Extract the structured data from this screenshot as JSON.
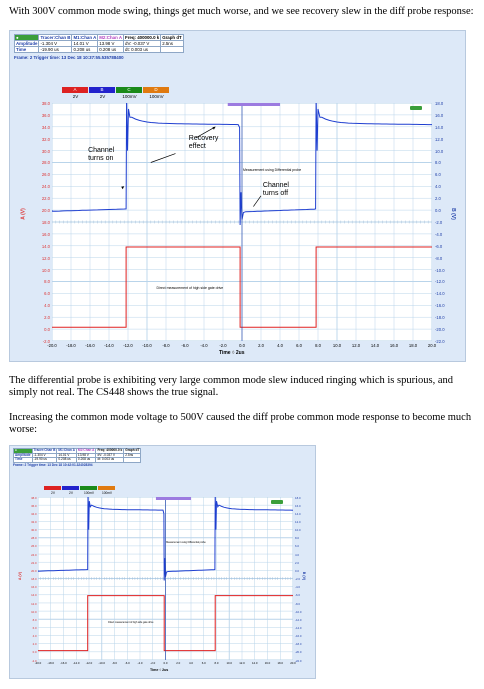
{
  "paragraphs": [
    "With 300V common mode swing, things get much worse, and we see recovery slew in the diff probe response:",
    "The differential probe is exhibiting very large common mode slew induced ringing which is spurious, and simply not real. The CS448 shows the true signal.",
    "Increasing the common mode voltage to 500V caused the diff probe common mode response to become much worse:"
  ],
  "figure1": {
    "table": {
      "headers": [
        "Tracer:Chan B",
        "M1:Chan A",
        "M2:Chan A",
        "Freq: 400000.0 k",
        "Graph dT"
      ],
      "rows": [
        [
          "Amplitude",
          "-1.304 V",
          "14.01 V",
          "13.98 V",
          "dV: -0.037 V",
          "2.5ns"
        ],
        [
          "Time",
          "-19.90 us",
          "0.208 us",
          "0.208 us",
          "dt: 0.003 us",
          ""
        ]
      ],
      "frame_line": "Frame: 2   Trigger time: 13 Dec 18 10:37:55.535788400"
    },
    "channel_chips": [
      "A",
      "B",
      "C",
      "D"
    ],
    "channel_scales": [
      "2V",
      "2V",
      "100mV",
      "100mV"
    ],
    "y_left_label": "A (V)",
    "y_right_label": "B (V)",
    "x_label": "Time",
    "x_unit": "2us",
    "y_left_ticks": [
      "38.0",
      "36.0",
      "34.0",
      "32.0",
      "30.0",
      "28.0",
      "26.0",
      "24.0",
      "22.0",
      "20.0",
      "18.0",
      "16.0",
      "14.0",
      "12.0",
      "10.0",
      "8.0",
      "6.0",
      "4.0",
      "2.0",
      "0.0",
      "-2.0"
    ],
    "y_right_ticks": [
      "18.0",
      "16.0",
      "14.0",
      "12.0",
      "10.0",
      "8.0",
      "6.0",
      "4.0",
      "2.0",
      "0.0",
      "-2.0",
      "-4.0",
      "-6.0",
      "-8.0",
      "-10.0",
      "-12.0",
      "-14.0",
      "-16.0",
      "-18.0",
      "-20.0",
      "-22.0"
    ],
    "x_ticks": [
      "-20.0",
      "-18.0",
      "-16.0",
      "-14.0",
      "-12.0",
      "-10.0",
      "-8.0",
      "-6.0",
      "-4.0",
      "-2.0",
      "0.0",
      "2.0",
      "4.0",
      "6.0",
      "8.0",
      "10.0",
      "12.0",
      "14.0",
      "16.0",
      "18.0",
      "20.0"
    ],
    "annotations": {
      "recovery": "Recovery\neffect",
      "channel_on": "Channel\nturns on",
      "channel_off": "Channel\nturns off",
      "diff_probe": "Measurement using Differential probe",
      "direct": "Direct measurement of high side gate drive"
    },
    "colors": {
      "trace_a": "#e02020",
      "trace_b": "#1f3fd0",
      "grid": "#b9d4ea",
      "bg": "#dde9f8"
    }
  },
  "figure2": {
    "table": {
      "headers": [
        "Tracer:Chan B",
        "M1:Chan A",
        "M2:Chan A",
        "Freq: 400000.0 k",
        "Graph dT"
      ],
      "rows": [
        [
          "Amplitude",
          "-1.304 V",
          "14.01 V",
          "13.98 V",
          "dV: -0.037 V",
          "2.5ns"
        ],
        [
          "Time",
          "-19.90 us",
          "0.208 us",
          "0.208 us",
          "dt: 0.003 us",
          ""
        ]
      ],
      "frame_line": "Frame: 2   Trigger time: 13 Dec 18 10:42:01.324028394"
    },
    "channel_scales": [
      "2V",
      "2V",
      "100mV",
      "100mV"
    ],
    "y_left_label": "A (V)",
    "y_right_label": "B (V)",
    "x_label": "Time",
    "x_unit": "2us",
    "annotations": {
      "diff_probe": "Measurement using Differential probe",
      "direct": "Direct measurement of high side gate drive"
    }
  }
}
